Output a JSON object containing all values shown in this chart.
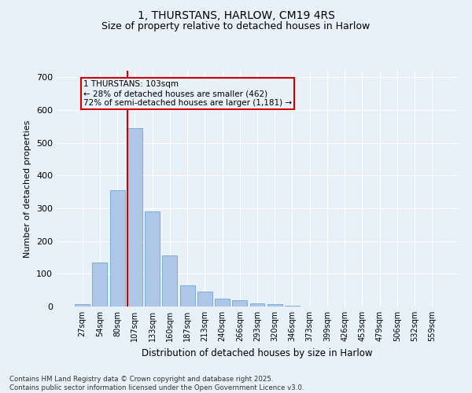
{
  "title_line1": "1, THURSTANS, HARLOW, CM19 4RS",
  "title_line2": "Size of property relative to detached houses in Harlow",
  "xlabel": "Distribution of detached houses by size in Harlow",
  "ylabel": "Number of detached properties",
  "categories": [
    "27sqm",
    "54sqm",
    "80sqm",
    "107sqm",
    "133sqm",
    "160sqm",
    "187sqm",
    "213sqm",
    "240sqm",
    "266sqm",
    "293sqm",
    "320sqm",
    "346sqm",
    "373sqm",
    "399sqm",
    "426sqm",
    "453sqm",
    "479sqm",
    "506sqm",
    "532sqm",
    "559sqm"
  ],
  "values": [
    8,
    135,
    355,
    545,
    290,
    155,
    65,
    45,
    25,
    20,
    10,
    8,
    2,
    0,
    0,
    0,
    0,
    0,
    0,
    0,
    0
  ],
  "bar_color": "#aec6e8",
  "bar_edge_color": "#5b9bd5",
  "vline_index": 2.6,
  "marker_label_line1": "1 THURSTANS: 103sqm",
  "marker_label_line2": "← 28% of detached houses are smaller (462)",
  "marker_label_line3": "72% of semi-detached houses are larger (1,181) →",
  "vline_color": "#cc0000",
  "annotation_box_color": "#cc0000",
  "background_color": "#e8f0f8",
  "grid_color": "#ffffff",
  "ylim": [
    0,
    720
  ],
  "yticks": [
    0,
    100,
    200,
    300,
    400,
    500,
    600,
    700
  ],
  "footer_line1": "Contains HM Land Registry data © Crown copyright and database right 2025.",
  "footer_line2": "Contains public sector information licensed under the Open Government Licence v3.0."
}
